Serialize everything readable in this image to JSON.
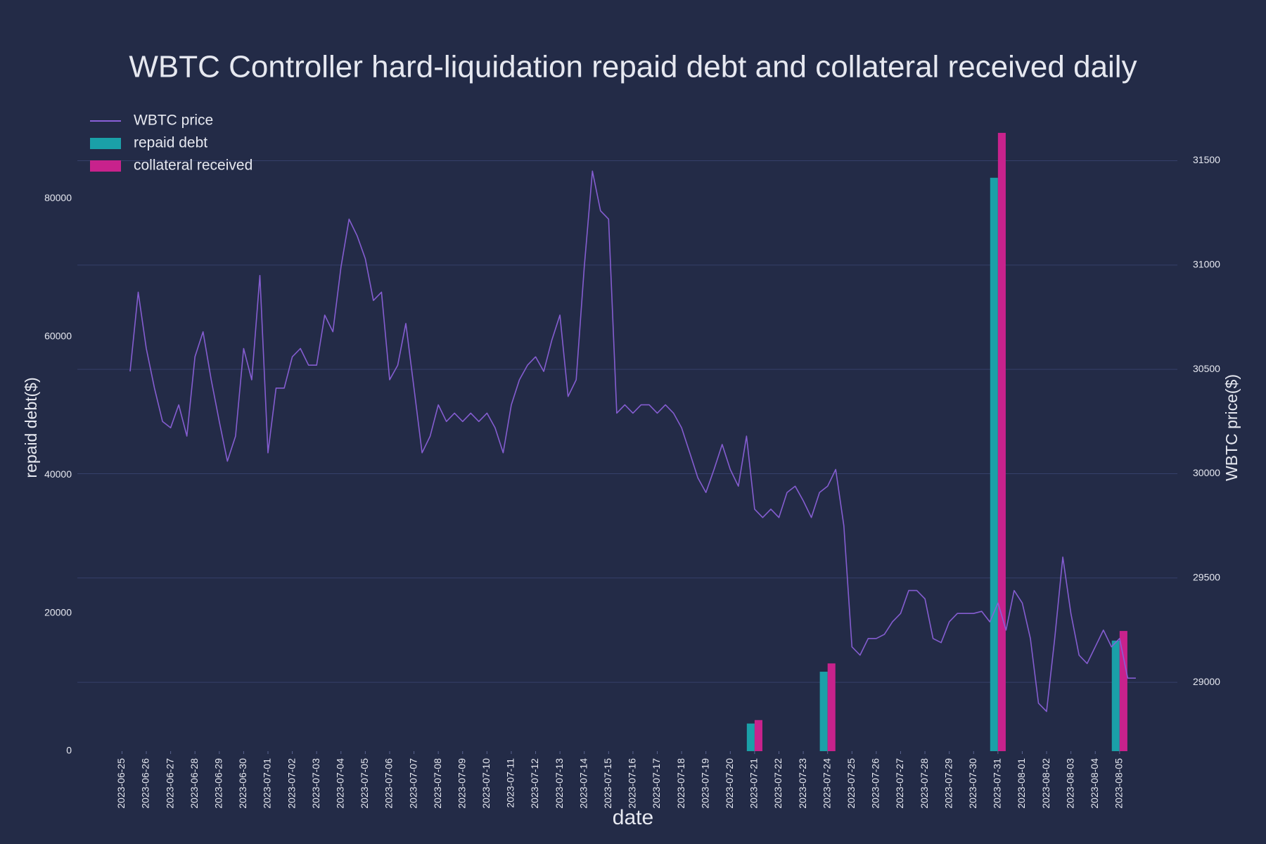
{
  "chart_data": {
    "type": "combo",
    "title": "WBTC Controller hard-liquidation repaid debt and collateral received daily",
    "xlabel": "date",
    "ylabel": "repaid debt($)",
    "y2label": "WBTC price($)",
    "xlim": [
      "2023-06-23 04:00",
      "2023-08-07 09:00"
    ],
    "xticks": [
      "2023-06-25",
      "2023-06-26",
      "2023-06-27",
      "2023-06-28",
      "2023-06-29",
      "2023-06-30",
      "2023-07-01",
      "2023-07-02",
      "2023-07-03",
      "2023-07-04",
      "2023-07-05",
      "2023-07-06",
      "2023-07-07",
      "2023-07-08",
      "2023-07-09",
      "2023-07-10",
      "2023-07-11",
      "2023-07-12",
      "2023-07-13",
      "2023-07-14",
      "2023-07-15",
      "2023-07-16",
      "2023-07-17",
      "2023-07-18",
      "2023-07-19",
      "2023-07-20",
      "2023-07-21",
      "2023-07-22",
      "2023-07-23",
      "2023-07-24",
      "2023-07-25",
      "2023-07-26",
      "2023-07-27",
      "2023-07-28",
      "2023-07-29",
      "2023-07-30",
      "2023-07-31",
      "2023-08-01",
      "2023-08-02",
      "2023-08-03",
      "2023-08-04",
      "2023-08-05"
    ],
    "ylim": [
      0,
      90000
    ],
    "yticks": [
      0,
      20000,
      40000,
      60000,
      80000
    ],
    "y2lim": [
      28670,
      31650
    ],
    "y2ticks": [
      29000,
      29500,
      30000,
      30500,
      31000,
      31500
    ],
    "grid": true,
    "legend": "top-left",
    "series": [
      {
        "name": "WBTC price",
        "type": "line",
        "axis": "y2",
        "color": "#8a60d8",
        "x": [
          "2023-06-25 08:00",
          "2023-06-25 16:00",
          "2023-06-26 00:00",
          "2023-06-26 08:00",
          "2023-06-26 16:00",
          "2023-06-27 00:00",
          "2023-06-27 08:00",
          "2023-06-27 16:00",
          "2023-06-28 00:00",
          "2023-06-28 08:00",
          "2023-06-28 16:00",
          "2023-06-29 00:00",
          "2023-06-29 08:00",
          "2023-06-29 16:00",
          "2023-06-30 00:00",
          "2023-06-30 08:00",
          "2023-06-30 16:00",
          "2023-07-01 00:00",
          "2023-07-01 08:00",
          "2023-07-01 16:00",
          "2023-07-02 00:00",
          "2023-07-02 08:00",
          "2023-07-02 16:00",
          "2023-07-03 00:00",
          "2023-07-03 08:00",
          "2023-07-03 16:00",
          "2023-07-04 00:00",
          "2023-07-04 08:00",
          "2023-07-04 16:00",
          "2023-07-05 00:00",
          "2023-07-05 08:00",
          "2023-07-05 16:00",
          "2023-07-06 00:00",
          "2023-07-06 08:00",
          "2023-07-06 16:00",
          "2023-07-07 00:00",
          "2023-07-07 08:00",
          "2023-07-07 16:00",
          "2023-07-08 00:00",
          "2023-07-08 08:00",
          "2023-07-08 16:00",
          "2023-07-09 00:00",
          "2023-07-09 08:00",
          "2023-07-09 16:00",
          "2023-07-10 00:00",
          "2023-07-10 08:00",
          "2023-07-10 16:00",
          "2023-07-11 00:00",
          "2023-07-11 08:00",
          "2023-07-11 16:00",
          "2023-07-12 00:00",
          "2023-07-12 08:00",
          "2023-07-12 16:00",
          "2023-07-13 00:00",
          "2023-07-13 08:00",
          "2023-07-13 16:00",
          "2023-07-14 00:00",
          "2023-07-14 08:00",
          "2023-07-14 16:00",
          "2023-07-15 00:00",
          "2023-07-15 08:00",
          "2023-07-15 16:00",
          "2023-07-16 00:00",
          "2023-07-16 08:00",
          "2023-07-16 16:00",
          "2023-07-17 00:00",
          "2023-07-17 08:00",
          "2023-07-17 16:00",
          "2023-07-18 00:00",
          "2023-07-18 08:00",
          "2023-07-18 16:00",
          "2023-07-19 00:00",
          "2023-07-19 08:00",
          "2023-07-19 16:00",
          "2023-07-20 00:00",
          "2023-07-20 08:00",
          "2023-07-20 16:00",
          "2023-07-21 00:00",
          "2023-07-21 08:00",
          "2023-07-21 16:00",
          "2023-07-22 00:00",
          "2023-07-22 08:00",
          "2023-07-22 16:00",
          "2023-07-23 00:00",
          "2023-07-23 08:00",
          "2023-07-23 16:00",
          "2023-07-24 00:00",
          "2023-07-24 08:00",
          "2023-07-24 16:00",
          "2023-07-25 00:00",
          "2023-07-25 08:00",
          "2023-07-25 16:00",
          "2023-07-26 00:00",
          "2023-07-26 08:00",
          "2023-07-26 16:00",
          "2023-07-27 00:00",
          "2023-07-27 08:00",
          "2023-07-27 16:00",
          "2023-07-28 00:00",
          "2023-07-28 08:00",
          "2023-07-28 16:00",
          "2023-07-29 00:00",
          "2023-07-29 08:00",
          "2023-07-29 16:00",
          "2023-07-30 00:00",
          "2023-07-30 08:00",
          "2023-07-30 16:00",
          "2023-07-31 00:00",
          "2023-07-31 08:00",
          "2023-07-31 16:00",
          "2023-08-01 00:00",
          "2023-08-01 08:00",
          "2023-08-01 16:00",
          "2023-08-02 00:00",
          "2023-08-02 08:00",
          "2023-08-02 16:00",
          "2023-08-03 00:00",
          "2023-08-03 08:00",
          "2023-08-03 16:00",
          "2023-08-04 00:00",
          "2023-08-04 08:00",
          "2023-08-04 16:00",
          "2023-08-05 00:00",
          "2023-08-05 08:00",
          "2023-08-05 16:00"
        ],
        "values": [
          30490,
          30870,
          30600,
          30410,
          30250,
          30220,
          30330,
          30180,
          30560,
          30680,
          30450,
          30250,
          30060,
          30180,
          30600,
          30450,
          30950,
          30100,
          30410,
          30410,
          30560,
          30600,
          30520,
          30520,
          30760,
          30680,
          30990,
          31220,
          31140,
          31030,
          30830,
          30870,
          30450,
          30520,
          30720,
          30410,
          30100,
          30180,
          30330,
          30250,
          30290,
          30250,
          30290,
          30250,
          30290,
          30220,
          30100,
          30330,
          30450,
          30520,
          30560,
          30490,
          30640,
          30760,
          30370,
          30450,
          30990,
          31450,
          31260,
          31220,
          30290,
          30330,
          30290,
          30330,
          30330,
          30290,
          30330,
          30290,
          30220,
          30100,
          29980,
          29910,
          30020,
          30140,
          30020,
          29940,
          30180,
          29830,
          29790,
          29830,
          29790,
          29910,
          29940,
          29870,
          29790,
          29910,
          29940,
          30020,
          29750,
          29170,
          29130,
          29210,
          29210,
          29230,
          29290,
          29330,
          29440,
          29440,
          29400,
          29210,
          29190,
          29290,
          29330,
          29330,
          29330,
          29340,
          29290,
          29380,
          29250,
          29440,
          29380,
          29210,
          28900,
          28860,
          29210,
          29600,
          29330,
          29130,
          29090,
          29170,
          29250,
          29170,
          29210,
          29020,
          29020
        ]
      },
      {
        "name": "repaid debt",
        "type": "bar",
        "color": "#1aa0a8",
        "x": [
          "2023-07-21",
          "2023-07-24",
          "2023-07-31",
          "2023-08-05"
        ],
        "values": [
          4000,
          11500,
          83000,
          16000
        ]
      },
      {
        "name": "collateral received",
        "type": "bar",
        "color": "#c8228c",
        "x": [
          "2023-07-21",
          "2023-07-24",
          "2023-07-31",
          "2023-08-05"
        ],
        "values": [
          4500,
          12700,
          89500,
          17400
        ]
      }
    ]
  }
}
